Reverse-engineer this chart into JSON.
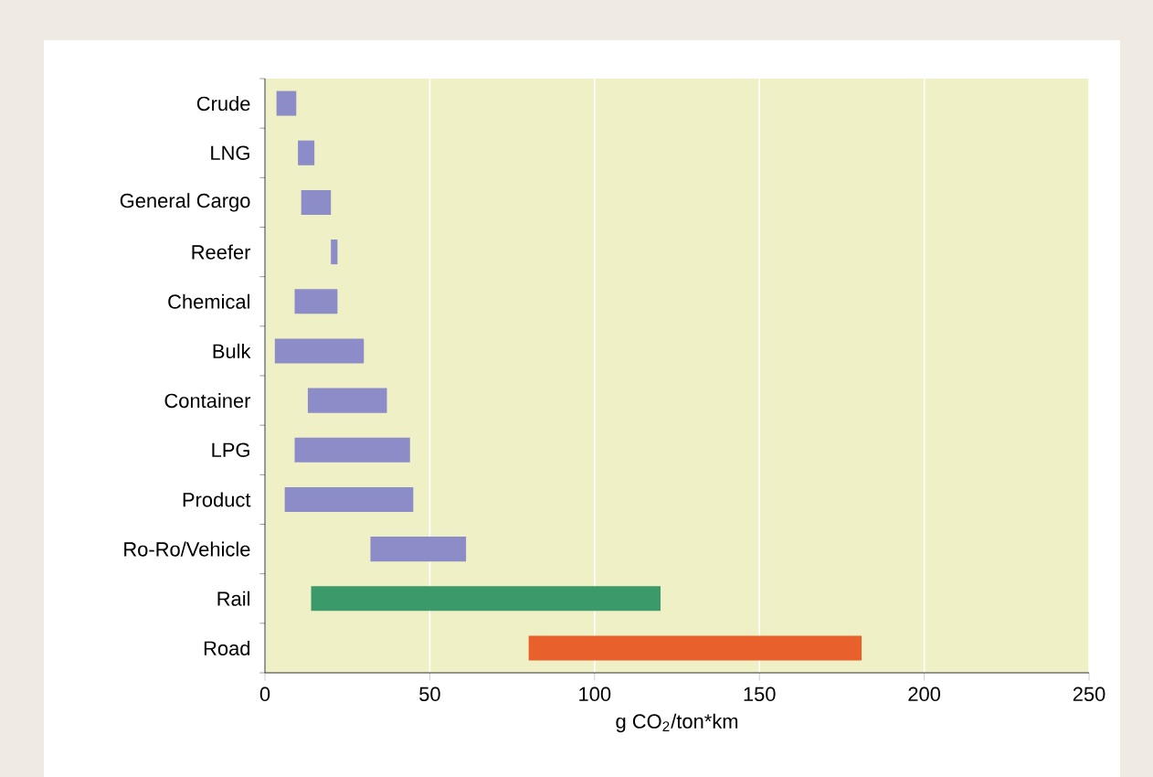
{
  "chart_data": {
    "type": "bar",
    "orientation": "horizontal",
    "xlabel": "g CO$_{2}$/ton*km",
    "categories": [
      "Crude",
      "LNG",
      "General Cargo",
      "Reefer",
      "Chemical",
      "Bulk",
      "Container",
      "LPG",
      "Product",
      "Ro-Ro/Vehicle",
      "Rail",
      "Road"
    ],
    "base": [
      3.5,
      10,
      11,
      20,
      9,
      3,
      13,
      9,
      6,
      32,
      14,
      80
    ],
    "values": [
      6,
      5,
      9,
      2,
      13,
      27,
      24,
      35,
      39,
      29,
      106,
      101
    ],
    "colors": [
      "#8c8cc8",
      "#8c8cc8",
      "#8c8cc8",
      "#8c8cc8",
      "#8c8cc8",
      "#8c8cc8",
      "#8c8cc8",
      "#8c8cc8",
      "#8c8cc8",
      "#8c8cc8",
      "#3a9a6a",
      "#e8602c"
    ],
    "xlim": [
      0,
      250
    ],
    "xticks": [
      0,
      50,
      100,
      150,
      200,
      250
    ],
    "grid": "x"
  }
}
